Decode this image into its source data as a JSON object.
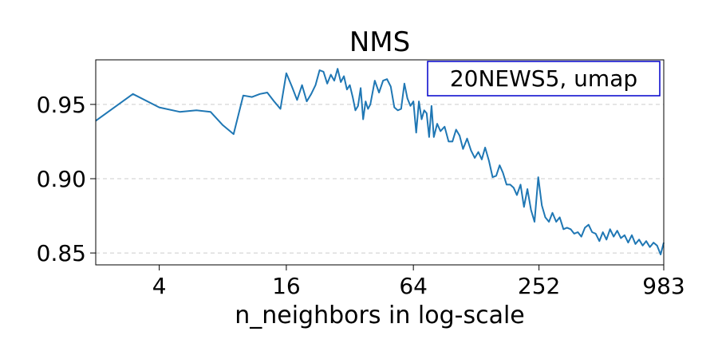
{
  "chart_data": {
    "type": "line",
    "title": "NMS",
    "xlabel": "n_neighbors in log-scale",
    "ylabel": "",
    "x_scale": "log2",
    "xlim": [
      2,
      983
    ],
    "ylim": [
      0.842,
      0.98
    ],
    "xticks": [
      4,
      16,
      64,
      252,
      983
    ],
    "xtick_labels": [
      "4",
      "16",
      "64",
      "252",
      "983"
    ],
    "yticks": [
      0.85,
      0.9,
      0.95
    ],
    "ytick_labels": [
      "0.85",
      "0.90",
      "0.95"
    ],
    "grid": "horizontal dashed",
    "annotation": "20NEWS5, umap",
    "annotation_position": "top-right",
    "line_color": "#1f77b4",
    "annotation_border_color": "#0000cc",
    "series": [
      {
        "x": [
          2,
          3,
          4,
          5,
          6,
          7,
          8,
          9,
          10,
          11,
          12,
          13,
          14,
          15,
          16,
          17,
          18,
          19,
          20,
          21,
          22,
          23,
          24,
          25,
          26,
          27,
          28,
          29,
          30,
          31,
          32,
          33,
          34,
          35,
          36,
          37,
          38,
          39,
          40,
          42,
          44,
          46,
          48,
          50,
          52,
          54,
          56,
          58,
          60,
          62,
          64,
          66,
          68,
          70,
          72,
          74,
          76,
          78,
          80,
          83,
          86,
          90,
          94,
          98,
          102,
          106,
          110,
          115,
          120,
          125,
          130,
          135,
          140,
          146,
          152,
          158,
          164,
          170,
          177,
          184,
          191,
          198,
          206,
          214,
          222,
          231,
          240,
          250,
          260,
          270,
          281,
          292,
          304,
          316,
          329,
          342,
          356,
          370,
          385,
          400,
          416,
          433,
          450,
          468,
          487,
          506,
          526,
          547,
          569,
          592,
          616,
          641,
          667,
          694,
          722,
          751,
          781,
          812,
          845,
          879,
          914,
          950,
          983
        ],
        "y": [
          0.939,
          0.957,
          0.948,
          0.945,
          0.946,
          0.945,
          0.936,
          0.93,
          0.956,
          0.955,
          0.957,
          0.958,
          0.952,
          0.947,
          0.971,
          0.962,
          0.953,
          0.963,
          0.952,
          0.957,
          0.963,
          0.973,
          0.972,
          0.964,
          0.97,
          0.966,
          0.974,
          0.965,
          0.969,
          0.96,
          0.963,
          0.955,
          0.946,
          0.949,
          0.961,
          0.94,
          0.952,
          0.947,
          0.95,
          0.966,
          0.958,
          0.966,
          0.967,
          0.962,
          0.948,
          0.946,
          0.947,
          0.964,
          0.954,
          0.949,
          0.952,
          0.931,
          0.952,
          0.94,
          0.946,
          0.944,
          0.928,
          0.949,
          0.928,
          0.937,
          0.932,
          0.935,
          0.925,
          0.925,
          0.933,
          0.929,
          0.92,
          0.927,
          0.919,
          0.914,
          0.918,
          0.913,
          0.921,
          0.912,
          0.901,
          0.902,
          0.909,
          0.904,
          0.896,
          0.896,
          0.894,
          0.889,
          0.896,
          0.881,
          0.893,
          0.879,
          0.871,
          0.901,
          0.882,
          0.874,
          0.871,
          0.877,
          0.871,
          0.874,
          0.866,
          0.867,
          0.866,
          0.863,
          0.864,
          0.861,
          0.867,
          0.869,
          0.864,
          0.863,
          0.858,
          0.864,
          0.859,
          0.866,
          0.861,
          0.865,
          0.86,
          0.862,
          0.857,
          0.862,
          0.856,
          0.859,
          0.855,
          0.858,
          0.854,
          0.857,
          0.855,
          0.849,
          0.857
        ]
      }
    ]
  }
}
